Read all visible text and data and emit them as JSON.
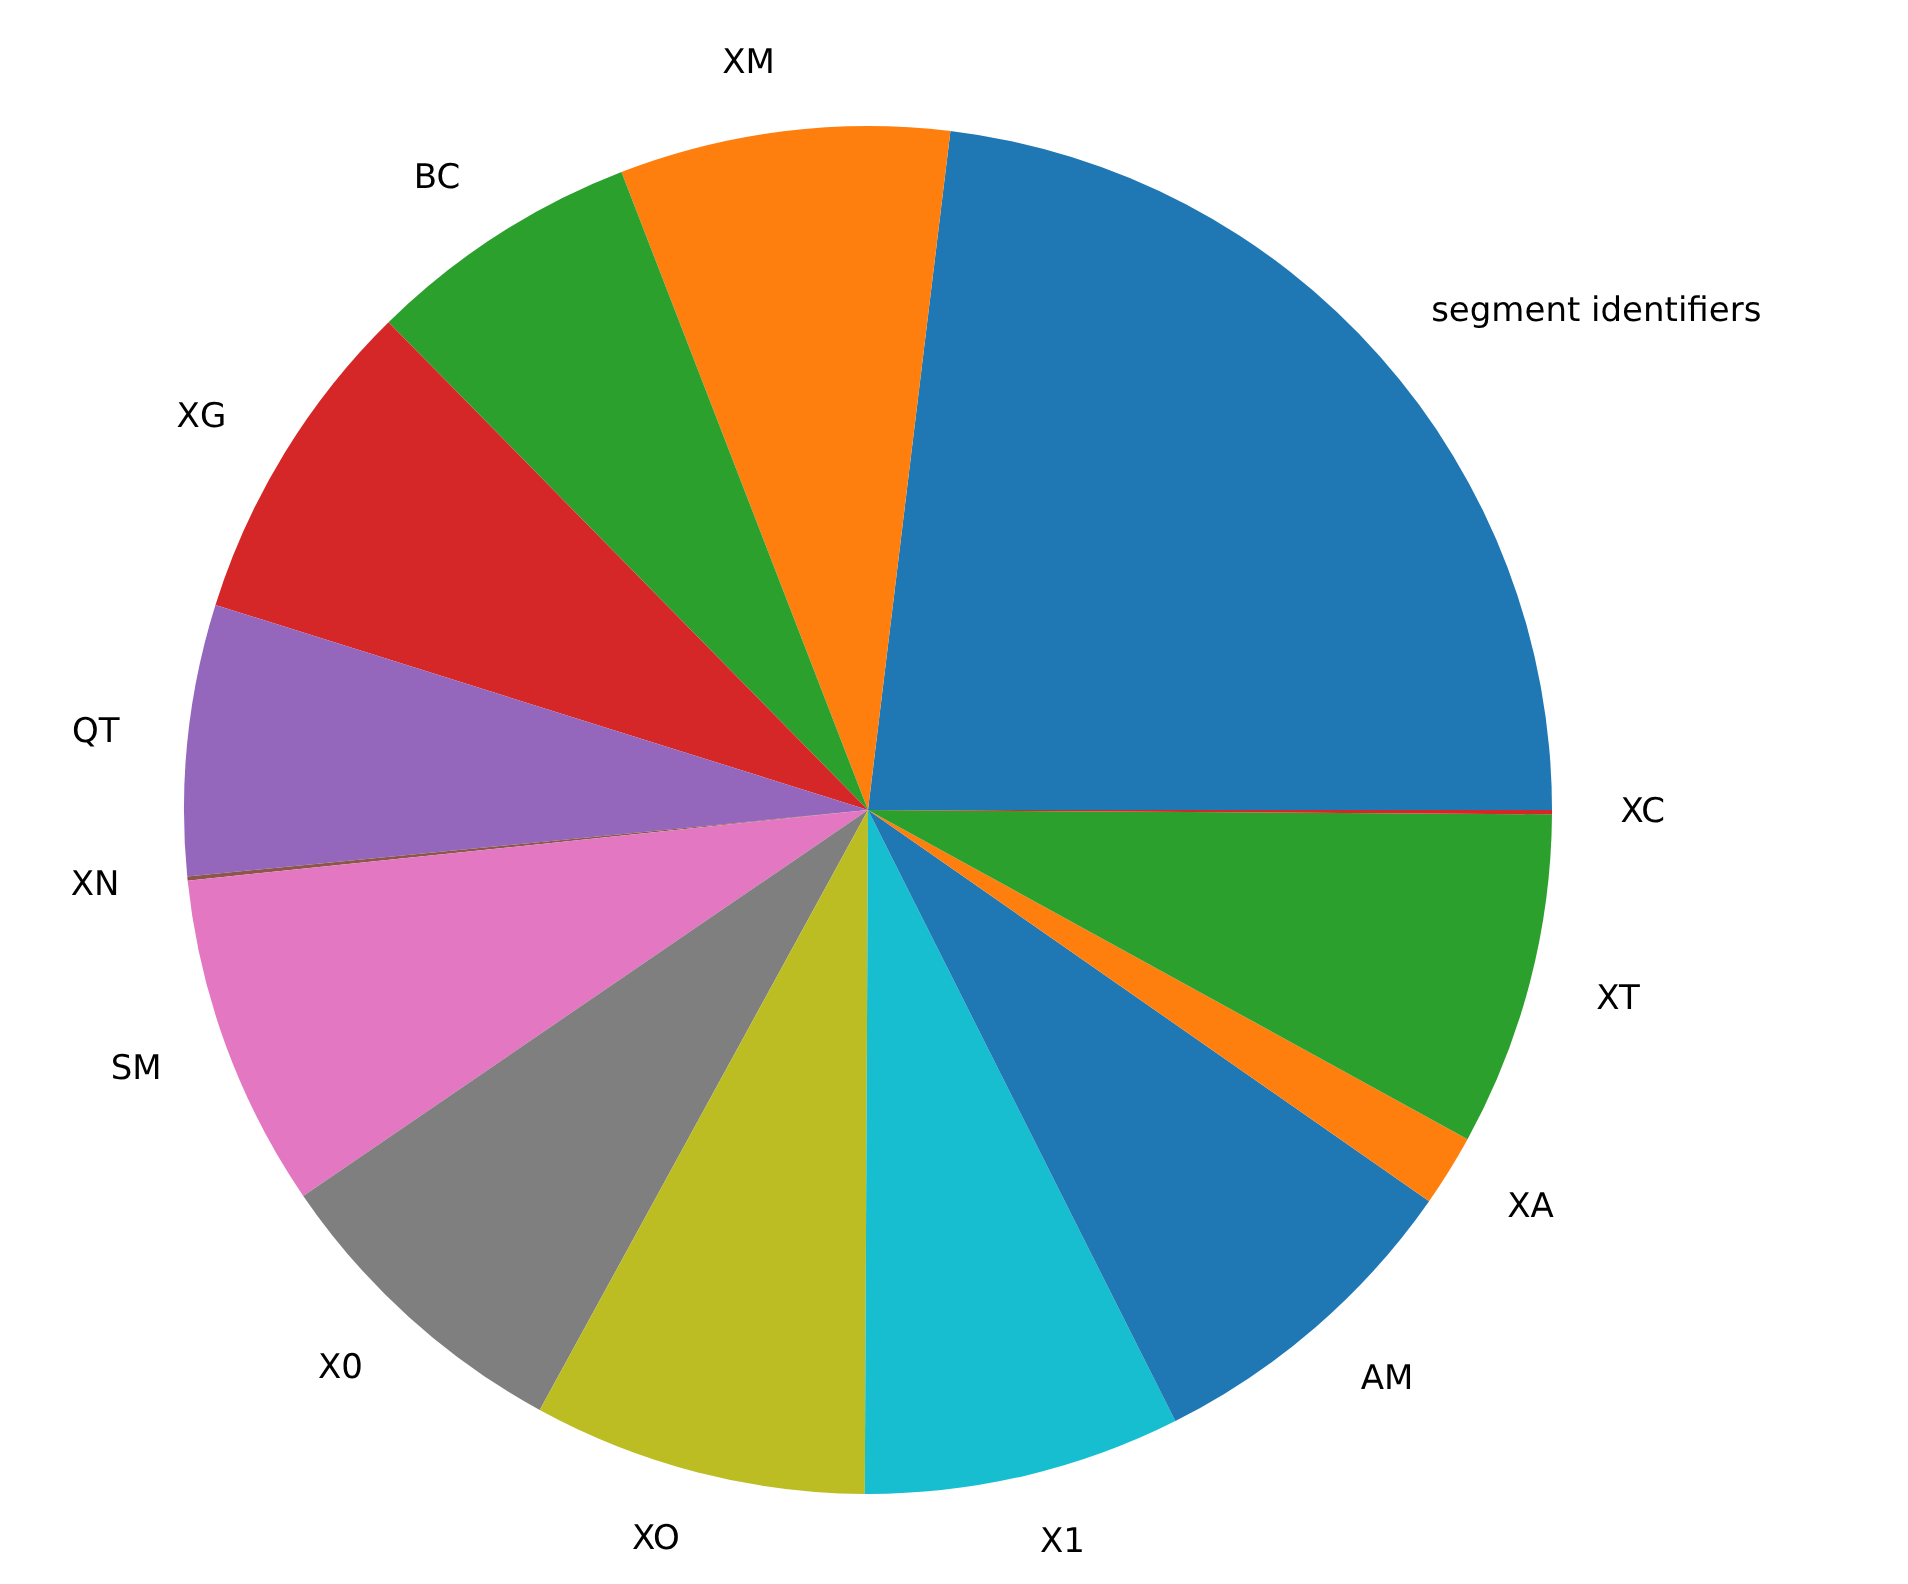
{
  "chart_data": {
    "type": "pie",
    "categories": [
      "segment identifiers",
      "XM",
      "BC",
      "XG",
      "QT",
      "XN",
      "SM",
      "X0",
      "XO",
      "X1",
      "AM",
      "XA",
      "XT",
      "XC"
    ],
    "values": [
      23.1,
      7.8,
      6.5,
      7.8,
      6.4,
      0.1,
      7.9,
      7.5,
      7.9,
      7.5,
      7.9,
      1.7,
      7.9,
      0.1
    ],
    "colors": [
      "#1f77b4",
      "#ff7f0e",
      "#2ca02c",
      "#d62728",
      "#9467bd",
      "#8c564b",
      "#e377c2",
      "#7f7f7f",
      "#bcbd22",
      "#17becf",
      "#1f77b4",
      "#ff7f0e",
      "#2ca02c",
      "#d62728"
    ]
  }
}
